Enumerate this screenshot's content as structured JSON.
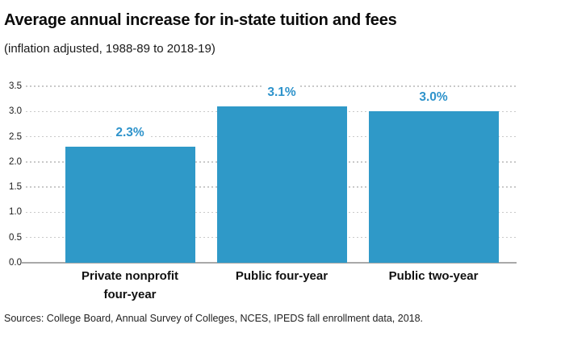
{
  "header": {
    "title": "Average annual increase for in-state tuition and fees",
    "subtitle": "(inflation adjusted, 1988-89 to 2018-19)"
  },
  "footer": {
    "source": "Sources: College Board, Annual Survey of Colleges, NCES, IPEDS fall enrollment data, 2018."
  },
  "colors": {
    "bar": "#2f99c8",
    "value_label": "#2e93cb",
    "gridline": "#c9c9c9",
    "baseline": "#a9a9a9",
    "text": "#111111"
  },
  "chart_data": {
    "type": "bar",
    "title": "Average annual increase for in-state tuition and fees",
    "subtitle": "(inflation adjusted, 1988-89 to 2018-19)",
    "categories": [
      "Private nonprofit four-year",
      "Public four-year",
      "Public two-year"
    ],
    "category_lines": [
      [
        "Private nonprofit",
        "four-year"
      ],
      [
        "Public four-year"
      ],
      [
        "Public two-year"
      ]
    ],
    "bar_ids": [
      "private-nonprofit-four-year",
      "public-four-year",
      "public-two-year"
    ],
    "values": [
      2.3,
      3.1,
      3.0
    ],
    "value_labels": [
      "2.3%",
      "3.1%",
      "3.0%"
    ],
    "xlabel": "",
    "ylabel": "",
    "ylim": [
      0,
      3.5
    ],
    "ytick_step": 0.5,
    "yticks": [
      "0.0",
      "0.5",
      "1.0",
      "1.5",
      "2.0",
      "2.5",
      "3.0",
      "3.5"
    ],
    "grid": "dotted horizontal",
    "legend": "none",
    "source": "Sources: College Board, Annual Survey of Colleges, NCES, IPEDS fall enrollment data, 2018."
  }
}
